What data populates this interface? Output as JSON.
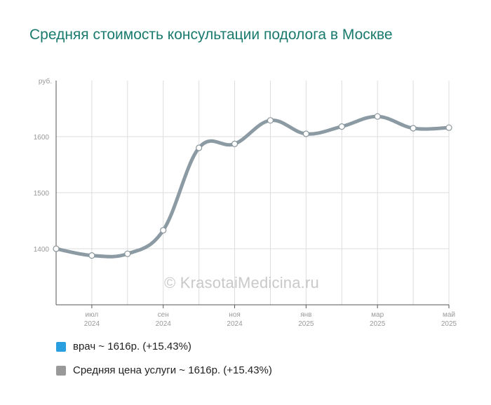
{
  "title": "Средняя стоимость консультации подолога в Москве",
  "watermark": "© KrasotaiMedicina.ru",
  "chart_data": {
    "type": "line",
    "y_unit": "руб.",
    "ylim": [
      1300,
      1700
    ],
    "y_ticks": [
      1400,
      1500,
      1600
    ],
    "grid": true,
    "x": [
      "2024-06",
      "2024-07",
      "2024-08",
      "2024-09",
      "2024-10",
      "2024-11",
      "2024-12",
      "2025-01",
      "2025-02",
      "2025-03",
      "2025-04",
      "2025-05"
    ],
    "x_tick_labels": [
      {
        "index": 1,
        "month": "июл",
        "year": "2024"
      },
      {
        "index": 3,
        "month": "сен",
        "year": "2024"
      },
      {
        "index": 5,
        "month": "ноя",
        "year": "2024"
      },
      {
        "index": 7,
        "month": "янв",
        "year": "2025"
      },
      {
        "index": 9,
        "month": "мар",
        "year": "2025"
      },
      {
        "index": 11,
        "month": "май",
        "year": "2025"
      }
    ],
    "series": [
      {
        "name": "Средняя цена услуги",
        "color": "#8c9ba3",
        "values": [
          1400,
          1388,
          1391,
          1433,
          1580,
          1587,
          1629,
          1605,
          1618,
          1636,
          1615,
          1616
        ]
      }
    ]
  },
  "legend": [
    {
      "label": "врач ~ 1616р. (+15.43%)",
      "color": "#2a9fe0"
    },
    {
      "label": "Средняя цена услуги ~ 1616р. (+15.43%)",
      "color": "#999999"
    }
  ]
}
